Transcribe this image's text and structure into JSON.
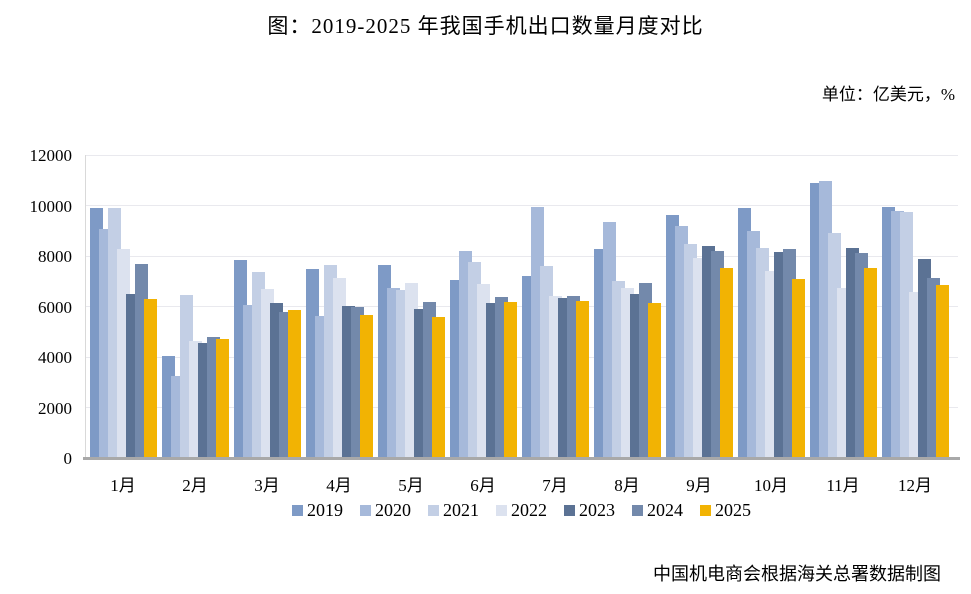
{
  "title": "图：2019-2025 年我国手机出口数量月度对比",
  "unit_label": "单位：亿美元，%",
  "source_note": "中国机电商会根据海关总署数据制图",
  "chart_data": {
    "type": "bar",
    "title": "图：2019-2025 年我国手机出口数量月度对比",
    "xlabel": "",
    "ylabel": "",
    "ylim": [
      0,
      12000
    ],
    "ytick_step": 2000,
    "grid": true,
    "legend_position": "bottom",
    "categories": [
      "1月",
      "2月",
      "3月",
      "4月",
      "5月",
      "6月",
      "7月",
      "8月",
      "9月",
      "10月",
      "11月",
      "12月"
    ],
    "series": [
      {
        "name": "2019",
        "color": "#7E9AC6",
        "values": [
          9900,
          4040,
          7850,
          7470,
          7640,
          7050,
          7220,
          8270,
          9620,
          9910,
          10900,
          9950
        ]
      },
      {
        "name": "2020",
        "color": "#A6B9DA",
        "values": [
          9070,
          3250,
          6050,
          5620,
          6720,
          8200,
          9950,
          9330,
          9190,
          8990,
          10970,
          9800
        ]
      },
      {
        "name": "2021",
        "color": "#C3CFE5",
        "values": [
          9890,
          6460,
          7350,
          7640,
          6650,
          7770,
          7600,
          7020,
          8460,
          8330,
          8920,
          9750
        ]
      },
      {
        "name": "2022",
        "color": "#DCE2EF",
        "values": [
          8270,
          4630,
          6700,
          7120,
          6940,
          6880,
          6400,
          6740,
          7930,
          7410,
          6740,
          6590
        ]
      },
      {
        "name": "2023",
        "color": "#5B7294",
        "values": [
          6480,
          4570,
          6150,
          6030,
          5900,
          6130,
          6330,
          6480,
          8410,
          8150,
          8330,
          7870
        ]
      },
      {
        "name": "2024",
        "color": "#7389AB",
        "values": [
          7700,
          4780,
          5800,
          6000,
          6190,
          6390,
          6420,
          6940,
          8200,
          8280,
          8130,
          7120
        ]
      },
      {
        "name": "2025",
        "color": "#F2B303",
        "values": [
          6290,
          4700,
          5870,
          5650,
          5570,
          6190,
          6200,
          6130,
          7540,
          7090,
          7540,
          6850
        ]
      }
    ]
  }
}
